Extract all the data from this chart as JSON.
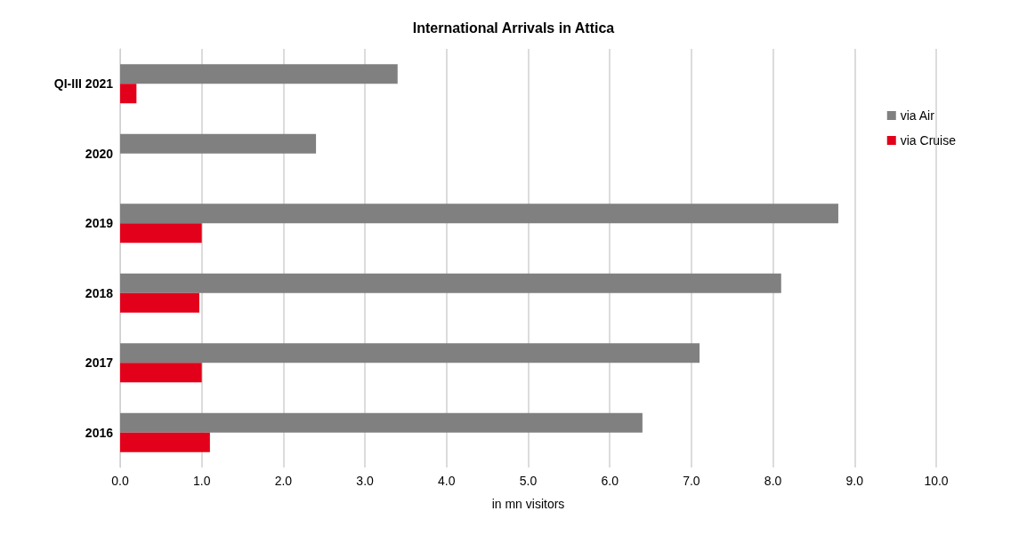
{
  "chart_data": {
    "type": "bar",
    "orientation": "horizontal",
    "title": "International Arrivals in Attica",
    "xlabel": "in mn visitors",
    "categories": [
      "QI-III 2021",
      "2020",
      "2019",
      "2018",
      "2017",
      "2016"
    ],
    "series": [
      {
        "name": "via Air",
        "color": "#808080",
        "values": [
          3.4,
          2.4,
          8.8,
          8.1,
          7.1,
          6.4
        ]
      },
      {
        "name": "via Cruise",
        "color": "#e2001a",
        "values": [
          0.2,
          null,
          1.0,
          0.97,
          1.0,
          1.1
        ]
      }
    ],
    "xlim": [
      0,
      10
    ],
    "xticks": [
      {
        "value": 0,
        "label": "0.0"
      },
      {
        "value": 1,
        "label": "1.0"
      },
      {
        "value": 2,
        "label": "2.0"
      },
      {
        "value": 3,
        "label": "3.0"
      },
      {
        "value": 4,
        "label": "4.0"
      },
      {
        "value": 5,
        "label": "5.0"
      },
      {
        "value": 6,
        "label": "6.0"
      },
      {
        "value": 7,
        "label": "7.0"
      },
      {
        "value": 8,
        "label": "8.0"
      },
      {
        "value": 9,
        "label": "9.0"
      },
      {
        "value": 10,
        "label": "10.0"
      }
    ],
    "grid": "x",
    "legend": "right"
  }
}
